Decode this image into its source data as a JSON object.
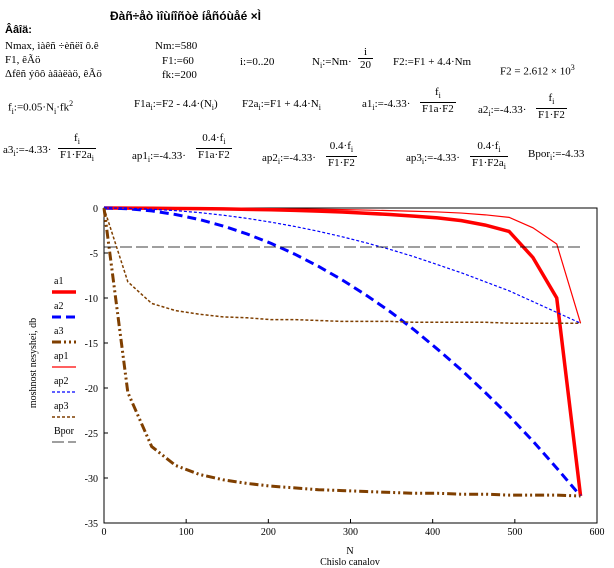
{
  "worksheet": {
    "title": "Ðàñ÷åò ìîùíîñòè íåñóùåé ×Ì",
    "section": "Ââîä:",
    "desc1": "Nmax, ìàêñ ÷èñëî ô.ê",
    "desc2": "F1, êÃö",
    "desc3": "Δfêñ ýôô àâàëàö, êÃö",
    "nm": "Nm:=580",
    "f1": "F1:=60",
    "fk": "fk:=200",
    "range": "i:=0..20",
    "ni_lhs": "N",
    "ni_sub": "i",
    "ni_mid": ":=Nm·",
    "ni_num": "i",
    "ni_den": "20",
    "f2def": "F2:=F1 + 4.4·Nm",
    "f2val": "F2 = 2.612 × 10",
    "f2exp": "3",
    "fi": "f",
    "fi_sub": "i",
    "fi_rest": ":=0.05·N",
    "fi_sub2": "i",
    "fi_tail": "·fk",
    "fi_sup": "2",
    "f1a": "F1a",
    "f1a_sub": "i",
    "f1a_rest": ":=F2 -  4.4·(N",
    "f1a_sub2": "i",
    "f1a_tail": ")",
    "f2a": "F2a",
    "f2a_sub": "i",
    "f2a_rest": ":=F1 + 4.4·N",
    "f2a_sub2": "i",
    "a1": "a1",
    "a1_sub": "i",
    "a1_rest": ":=-4.33·",
    "a1_num": "f",
    "a1_den": "F1a·F2",
    "a2": "a2",
    "a2_sub": "i",
    "a2_rest": ":=-4.33·",
    "a2_num": "f",
    "a2_den": "F1·F2",
    "a3": "a3",
    "a3_sub": "i",
    "a3_rest": ":=-4.33·",
    "a3_num": "f",
    "a3_den": "F1·F2a",
    "ap1": "ap1",
    "ap1_sub": "i",
    "ap1_rest": ":=-4.33·",
    "ap1_num": "0.4·f",
    "ap1_den": "F1a·F2",
    "ap2": "ap2",
    "ap2_sub": "i",
    "ap2_rest": ":=-4.33·",
    "ap2_num": "0.4·f",
    "ap2_den": "F1·F2",
    "ap3": "ap3",
    "ap3_sub": "i",
    "ap3_rest": ":=-4.33·",
    "ap3_num": "0.4·f",
    "ap3_den": "F1·F2a",
    "bpor": "Bpor",
    "bpor_sub": "i",
    "bpor_rest": ":=-4.33"
  },
  "chart_data": {
    "type": "line",
    "xlabel": "N",
    "xlabel2": "Chislo canalov",
    "ylabel": "moshnost nesyshei, db",
    "xlim": [
      0,
      600
    ],
    "ylim": [
      -35,
      0
    ],
    "xticks": [
      0,
      100,
      200,
      300,
      400,
      500,
      600
    ],
    "yticks": [
      0,
      -5,
      -10,
      -15,
      -20,
      -25,
      -30,
      -35
    ],
    "x": [
      0,
      29,
      58,
      87,
      116,
      145,
      174,
      203,
      232,
      261,
      290,
      319,
      348,
      377,
      406,
      435,
      464,
      493,
      522,
      551,
      580
    ],
    "series": [
      {
        "name": "a1",
        "color": "#ff0000",
        "width": 3.5,
        "dash": "",
        "values": [
          0,
          -0.02,
          -0.03,
          -0.05,
          -0.07,
          -0.1,
          -0.15,
          -0.2,
          -0.27,
          -0.35,
          -0.45,
          -0.58,
          -0.72,
          -0.9,
          -1.1,
          -1.4,
          -1.9,
          -2.6,
          -5.5,
          -10,
          -32
        ]
      },
      {
        "name": "a2",
        "color": "#0000ff",
        "width": 3,
        "dash": "9,5",
        "values": [
          0,
          -0.08,
          -0.32,
          -0.72,
          -1.28,
          -2.0,
          -2.88,
          -3.92,
          -5.12,
          -6.48,
          -8.0,
          -9.68,
          -11.5,
          -13.5,
          -15.7,
          -18.0,
          -20.5,
          -23.1,
          -25.9,
          -28.9,
          -32
        ]
      },
      {
        "name": "a3",
        "color": "#7f3f00",
        "width": 3,
        "dash": "9,3,2,3,2,3",
        "values": [
          0,
          -20.5,
          -26.5,
          -28.6,
          -29.6,
          -30.2,
          -30.6,
          -30.9,
          -31.1,
          -31.3,
          -31.4,
          -31.5,
          -31.6,
          -31.7,
          -31.7,
          -31.8,
          -31.8,
          -31.9,
          -31.9,
          -31.9,
          -32
        ]
      },
      {
        "name": "ap1",
        "color": "#ff0000",
        "width": 1.2,
        "dash": "",
        "values": [
          0,
          -0.01,
          -0.01,
          -0.02,
          -0.03,
          -0.04,
          -0.06,
          -0.08,
          -0.11,
          -0.14,
          -0.18,
          -0.23,
          -0.29,
          -0.36,
          -0.44,
          -0.56,
          -0.76,
          -1.04,
          -2.2,
          -4.0,
          -12.8
        ]
      },
      {
        "name": "ap2",
        "color": "#0000ff",
        "width": 1.2,
        "dash": "3,2",
        "values": [
          0,
          -0.03,
          -0.13,
          -0.29,
          -0.51,
          -0.8,
          -1.15,
          -1.57,
          -2.05,
          -2.59,
          -3.2,
          -3.87,
          -4.6,
          -5.4,
          -6.3,
          -7.2,
          -8.2,
          -9.2,
          -10.4,
          -11.6,
          -12.8
        ]
      },
      {
        "name": "ap3",
        "color": "#7f3f00",
        "width": 1.5,
        "dash": "3,2",
        "values": [
          0,
          -8.2,
          -10.6,
          -11.4,
          -11.8,
          -12.1,
          -12.2,
          -12.4,
          -12.4,
          -12.5,
          -12.6,
          -12.6,
          -12.6,
          -12.7,
          -12.7,
          -12.7,
          -12.7,
          -12.8,
          -12.8,
          -12.8,
          -12.8
        ]
      },
      {
        "name": "Bpor",
        "color": "#000000",
        "width": 0.8,
        "dash": "12,4",
        "values": [
          -4.33,
          -4.33,
          -4.33,
          -4.33,
          -4.33,
          -4.33,
          -4.33,
          -4.33,
          -4.33,
          -4.33,
          -4.33,
          -4.33,
          -4.33,
          -4.33,
          -4.33,
          -4.33,
          -4.33,
          -4.33,
          -4.33,
          -4.33,
          -4.33
        ]
      }
    ]
  }
}
